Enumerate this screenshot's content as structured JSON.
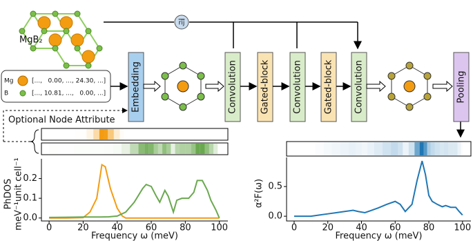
{
  "diagram": {
    "material": "MgB₂",
    "edge_feature": "rij",
    "inputs": [
      {
        "label": "Mg",
        "vector": "[...,   0.00, ..., 24.30, ...]"
      },
      {
        "label": "B",
        "vector": "[..., 10.81, ...,   0.00, ...]"
      }
    ],
    "optional": "Optional Node Attribute",
    "blocks": [
      "Embedding",
      "Convolution",
      "Gated-block",
      "Convolution",
      "Gated-block",
      "Convolution",
      "Pooling"
    ]
  },
  "chart_data": [
    {
      "type": "line",
      "ylabel": [
        "PhDOS",
        "meV⁻¹unit cell⁻¹"
      ],
      "xlabel": "Frequency ω (meV)",
      "xlim": [
        -4.5,
        105
      ],
      "ylim": [
        -0.015,
        0.3
      ],
      "xticks": [
        0,
        20,
        40,
        60,
        80,
        100
      ],
      "yticks": [
        {
          "value": 0,
          "label": "0.0"
        },
        {
          "value": 0.1,
          "label": "0.1"
        },
        {
          "value": 0.2,
          "label": "0.2"
        }
      ],
      "series": [
        {
          "name": null,
          "color": "#f39c12",
          "x": [
            0,
            10,
            20,
            24,
            28,
            31,
            33,
            36,
            40,
            43,
            45,
            50,
            60,
            70,
            80,
            90,
            100
          ],
          "values": [
            0,
            0,
            0.002,
            0.03,
            0.1,
            0.27,
            0.26,
            0.15,
            0.05,
            0.01,
            0,
            0,
            0,
            0,
            0,
            0,
            0
          ]
        },
        {
          "name": null,
          "color": "#6aa84f",
          "x": [
            0,
            10,
            20,
            30,
            35,
            40,
            45,
            50,
            55,
            57,
            60,
            63,
            65,
            68,
            70,
            73,
            75,
            78,
            82,
            85,
            87,
            90,
            93,
            95,
            98,
            100
          ],
          "values": [
            0.003,
            0.004,
            0.005,
            0.005,
            0.006,
            0.01,
            0.03,
            0.08,
            0.15,
            0.17,
            0.16,
            0.11,
            0.08,
            0.14,
            0.11,
            0.03,
            0.09,
            0.1,
            0.1,
            0.13,
            0.19,
            0.19,
            0.14,
            0.09,
            0.04,
            0
          ]
        }
      ]
    },
    {
      "type": "line",
      "ylabel": [
        "α²F(ω)"
      ],
      "xlabel": "Frequency ω (meV)",
      "xlim": [
        -4.5,
        105
      ],
      "ylim": [
        -0.08,
        0.99
      ],
      "xticks": [
        0,
        20,
        40,
        60,
        80,
        100
      ],
      "yticks": [
        {
          "value": 0,
          "label": "0.0"
        },
        {
          "value": 0.5,
          "label": "0.5"
        }
      ],
      "series": [
        {
          "name": null,
          "color": "#1f77b4",
          "x": [
            0,
            10,
            15,
            20,
            25,
            30,
            35,
            38,
            42,
            45,
            50,
            55,
            60,
            63,
            66,
            70,
            73,
            76,
            78,
            80,
            82,
            85,
            88,
            90,
            93,
            96,
            98,
            100
          ],
          "values": [
            0,
            0,
            0.02,
            0.04,
            0.06,
            0.08,
            0.1,
            0.08,
            0.06,
            0.09,
            0.14,
            0.2,
            0.25,
            0.2,
            0.08,
            0.2,
            0.6,
            0.93,
            0.7,
            0.35,
            0.25,
            0.2,
            0.16,
            0.18,
            0.15,
            0.15,
            0.08,
            0.02
          ]
        }
      ]
    }
  ]
}
